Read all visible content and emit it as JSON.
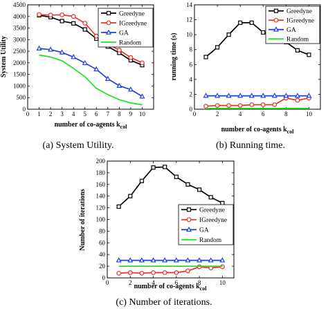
{
  "chart_data": [
    {
      "type": "line",
      "caption": "(a) System Utility.",
      "xlabel": "number of co-agents k",
      "xlabel_sub": "col",
      "ylabel": "System Utility",
      "xlim": [
        0,
        11
      ],
      "ylim": [
        0,
        4500
      ],
      "xticks": [
        0,
        1,
        2,
        3,
        4,
        5,
        6,
        7,
        8,
        9,
        10
      ],
      "yticks": [
        0,
        500,
        1000,
        1500,
        2000,
        2500,
        3000,
        3500,
        4000,
        4500
      ],
      "legend_position": "top-right",
      "x": [
        1,
        2,
        3,
        4,
        5,
        6,
        7,
        8,
        9,
        10
      ],
      "series": [
        {
          "name": "Greedyne",
          "color": "#000000",
          "marker": "square",
          "values": [
            4050,
            3970,
            3800,
            3700,
            3440,
            3040,
            2700,
            2430,
            2110,
            1900
          ]
        },
        {
          "name": "IGreedyne",
          "color": "#e8312a",
          "marker": "circle",
          "values": [
            4080,
            4060,
            4070,
            4000,
            3710,
            3150,
            2800,
            2550,
            2230,
            2000
          ]
        },
        {
          "name": "GA",
          "color": "#1f3fd8",
          "marker": "triangle",
          "values": [
            2620,
            2570,
            2450,
            2250,
            1990,
            1720,
            1310,
            1010,
            850,
            550
          ]
        },
        {
          "name": "Random",
          "color": "#22e022",
          "marker": "none",
          "values": [
            2340,
            2250,
            2090,
            1760,
            1400,
            900,
            630,
            410,
            270,
            190
          ]
        }
      ]
    },
    {
      "type": "line",
      "caption": "(b) Running time.",
      "xlabel": "number of co-agents k",
      "xlabel_sub": "col",
      "ylabel": "running time (s)",
      "xlim": [
        0,
        11
      ],
      "ylim": [
        0,
        14
      ],
      "xticks": [
        0,
        2,
        4,
        6,
        8,
        10
      ],
      "yticks": [
        0,
        2,
        4,
        6,
        8,
        10,
        12,
        14
      ],
      "legend_position": "top-right",
      "x": [
        1,
        2,
        3,
        4,
        5,
        6,
        7,
        8,
        9,
        10
      ],
      "series": [
        {
          "name": "Greedyne",
          "color": "#000000",
          "marker": "square",
          "values": [
            7.0,
            8.3,
            10.0,
            11.6,
            11.6,
            10.3,
            9.9,
            9.0,
            7.9,
            7.3
          ]
        },
        {
          "name": "IGreedyne",
          "color": "#e8312a",
          "marker": "circle",
          "values": [
            0.4,
            0.5,
            0.5,
            0.5,
            0.6,
            0.6,
            0.6,
            1.5,
            1.2,
            1.5
          ]
        },
        {
          "name": "GA",
          "color": "#1f3fd8",
          "marker": "triangle",
          "values": [
            1.8,
            1.8,
            1.8,
            1.8,
            1.8,
            1.8,
            1.8,
            1.8,
            1.8,
            1.8
          ]
        },
        {
          "name": "Random",
          "color": "#22e022",
          "marker": "none",
          "values": [
            0.1,
            0.1,
            0.1,
            0.1,
            0.1,
            0.1,
            0.1,
            0.1,
            0.1,
            0.1
          ]
        }
      ]
    },
    {
      "type": "line",
      "caption": "(c) Number of iterations.",
      "xlabel": "number of co-agents k",
      "xlabel_sub": "col",
      "ylabel": "Number of iterations",
      "xlim": [
        0,
        11
      ],
      "ylim": [
        0,
        200
      ],
      "xticks": [
        0,
        2,
        4,
        6,
        8,
        10
      ],
      "yticks": [
        0,
        20,
        40,
        60,
        80,
        100,
        120,
        140,
        160,
        180,
        200
      ],
      "legend_position": "center-right",
      "x": [
        1,
        2,
        3,
        4,
        5,
        6,
        7,
        8,
        9,
        10
      ],
      "series": [
        {
          "name": "Greedyne",
          "color": "#000000",
          "marker": "square",
          "values": [
            122,
            140,
            166,
            189,
            190,
            173,
            160,
            151,
            138,
            128
          ]
        },
        {
          "name": "IGreedyne",
          "color": "#e8312a",
          "marker": "circle",
          "values": [
            8,
            9,
            8,
            9,
            9,
            9,
            12,
            19,
            17,
            19
          ]
        },
        {
          "name": "GA",
          "color": "#1f3fd8",
          "marker": "triangle",
          "values": [
            30,
            30,
            30,
            30,
            30,
            30,
            30,
            30,
            30,
            30
          ]
        },
        {
          "name": "Random",
          "color": "#22e022",
          "marker": "none",
          "values": [
            20,
            20,
            20,
            20,
            20,
            20,
            20,
            20,
            20,
            20
          ]
        }
      ]
    }
  ]
}
